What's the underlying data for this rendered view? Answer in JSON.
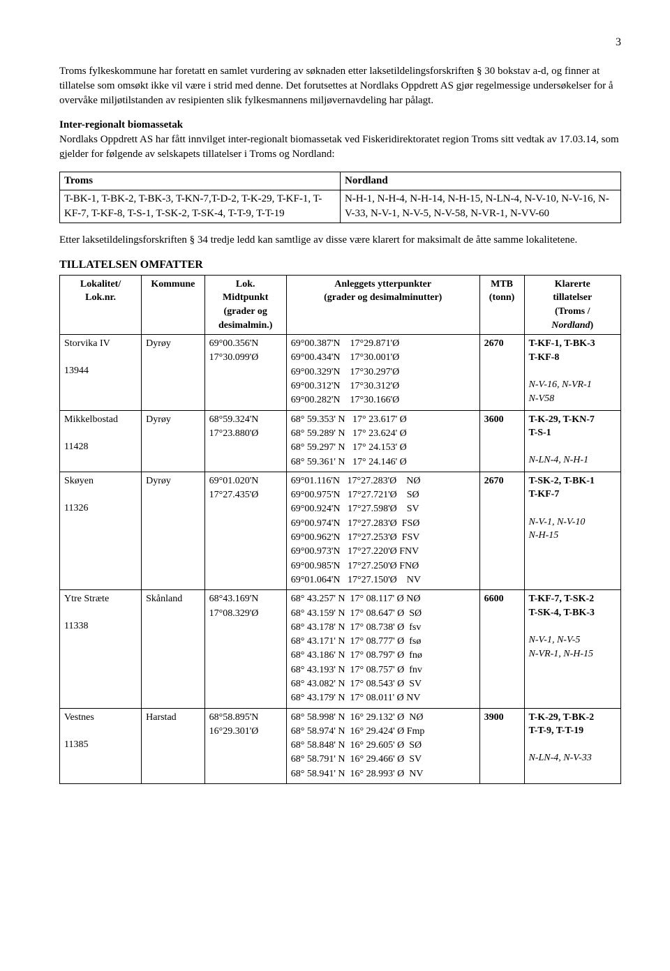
{
  "page_number": "3",
  "para1": "Troms fylkeskommune har foretatt en samlet vurdering av søknaden etter laksetildelingsforskriften § 30 bokstav a-d, og finner at tillatelse som omsøkt ikke vil være i strid med denne. Det forutsettes at Nordlaks Oppdrett AS gjør regelmessige undersøkelser for å overvåke miljøtilstanden av resipienten slik fylkesmannens miljøvernavdeling har pålagt.",
  "section1_head": "Inter-regionalt biomassetak",
  "para2": "Nordlaks Oppdrett AS har fått innvilget inter-regionalt biomassetak ved Fiskeridirektoratet region Troms sitt vedtak av 17.03.14, som gjelder for følgende av selskapets tillatelser i Troms og Nordland:",
  "region_table": {
    "headers": [
      "Troms",
      "Nordland"
    ],
    "troms": "T-BK-1, T-BK-2, T-BK-3, T-KN-7,T-D-2, T-K-29, T-KF-1, T-KF-7, T-KF-8, T-S-1, T-SK-2, T-SK-4, T-T-9, T-T-19",
    "nordland": "N-H-1, N-H-4, N-H-14, N-H-15, N-LN-4, N-V-10, N-V-16, N-V-33, N-V-1, N-V-5, N-V-58, N-VR-1, N-VV-60"
  },
  "para3": "Etter laksetildelingsforskriften § 34 tredje ledd kan samtlige av disse være klarert for maksimalt de åtte samme lokalitetene.",
  "section2_head": "TILLATELSEN OMFATTER",
  "main_table": {
    "headers": {
      "lok": "Lokalitet/ Lok.nr.",
      "kommune": "Kommune",
      "midtpunkt": "Lok. Midtpunkt (grader og desimalmin.)",
      "ytterpunkter": "Anleggets ytterpunkter (grader og desimalminutter)",
      "mtb": "MTB (tonn)",
      "klarerte": "Klarerte tillatelser (Troms / Nordland)"
    },
    "rows": [
      {
        "lok": "Storvika IV",
        "loknr": "13944",
        "kommune": "Dyrøy",
        "midtpunkt": [
          "69°00.356'N",
          "17°30.099'Ø"
        ],
        "ytterpunkter": [
          "69°00.387'N    17°29.871'Ø",
          "69°00.434'N    17°30.001'Ø",
          "69°00.329'N    17°30.297'Ø",
          "69°00.312'N    17°30.312'Ø",
          "69°00.282'N    17°30.166'Ø"
        ],
        "mtb": "2670",
        "klarerte_bold": [
          "T-KF-1, T-BK-3",
          "T-KF-8"
        ],
        "klarerte_ital": [
          "N-V-16, N-VR-1",
          "N-V58"
        ]
      },
      {
        "lok": "Mikkelbostad",
        "loknr": "11428",
        "kommune": "Dyrøy",
        "midtpunkt": [
          "68°59.324'N",
          "17°23.880'Ø"
        ],
        "ytterpunkter": [
          "68° 59.353' N   17° 23.617' Ø",
          "68° 59.289' N   17° 23.624' Ø",
          "68° 59.297' N   17° 24.153' Ø",
          "68° 59.361' N   17° 24.146' Ø"
        ],
        "mtb": "3600",
        "klarerte_bold": [
          "T-K-29, T-KN-7",
          "T-S-1"
        ],
        "klarerte_ital": [
          "N-LN-4, N-H-1"
        ]
      },
      {
        "lok": "Skøyen",
        "loknr": "11326",
        "kommune": "Dyrøy",
        "midtpunkt": [
          "69°01.020'N",
          "17°27.435'Ø"
        ],
        "ytterpunkter": [
          "69°01.116'N   17°27.283'Ø    NØ",
          "69°00.975'N   17°27.721'Ø    SØ",
          "69°00.924'N   17°27.598'Ø    SV",
          "69°00.974'N   17°27.283'Ø  FSØ",
          "69°00.962'N   17°27.253'Ø  FSV",
          "69°00.973'N   17°27.220'Ø FNV",
          "69°00.985'N   17°27.250'Ø FNØ",
          "69°01.064'N   17°27.150'Ø    NV"
        ],
        "mtb": "2670",
        "klarerte_bold": [
          "T-SK-2, T-BK-1",
          "T-KF-7"
        ],
        "klarerte_ital": [
          "N-V-1, N-V-10",
          "N-H-15"
        ]
      },
      {
        "lok": "Ytre Stræte",
        "loknr": "11338",
        "kommune": "Skånland",
        "midtpunkt": [
          "68°43.169'N",
          "17°08.329'Ø"
        ],
        "ytterpunkter": [
          "68° 43.257' N  17° 08.117' Ø NØ",
          "68° 43.159' N  17° 08.647' Ø  SØ",
          "68° 43.178' N  17° 08.738' Ø  fsv",
          "68° 43.171' N  17° 08.777' Ø  fsø",
          "68° 43.186' N  17° 08.797' Ø  fnø",
          "68° 43.193' N  17° 08.757' Ø  fnv",
          "68° 43.082' N  17° 08.543' Ø  SV",
          "68° 43.179' N  17° 08.011' Ø NV"
        ],
        "mtb": "6600",
        "klarerte_bold": [
          "T-KF-7, T-SK-2",
          "T-SK-4, T-BK-3"
        ],
        "klarerte_ital": [
          "N-V-1, N-V-5",
          "N-VR-1, N-H-15"
        ]
      },
      {
        "lok": "Vestnes",
        "loknr": "11385",
        "kommune": "Harstad",
        "midtpunkt": [
          "68°58.895'N",
          "16°29.301'Ø"
        ],
        "ytterpunkter": [
          "68° 58.998' N  16° 29.132' Ø  NØ",
          "68° 58.974' N  16° 29.424' Ø Fmp",
          "68° 58.848' N  16° 29.605' Ø  SØ",
          "68° 58.791' N  16° 29.466' Ø  SV",
          "68° 58.941' N  16° 28.993' Ø  NV"
        ],
        "mtb": "3900",
        "klarerte_bold": [
          "T-K-29, T-BK-2",
          "T-T-9, T-T-19"
        ],
        "klarerte_ital": [
          "N-LN-4, N-V-33"
        ]
      }
    ]
  }
}
